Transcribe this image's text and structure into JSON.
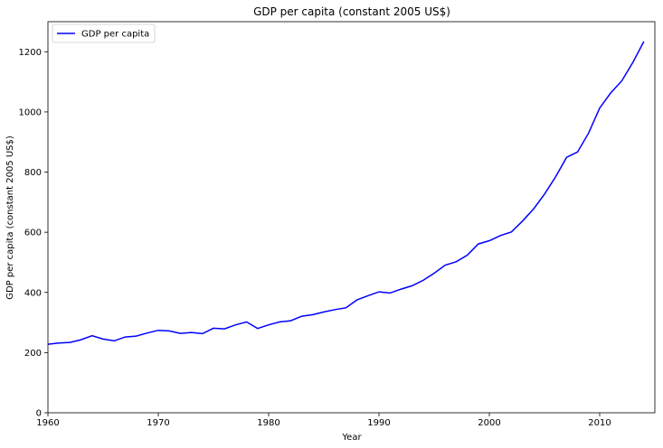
{
  "chart_data": {
    "type": "line",
    "title": "GDP per capita (constant 2005 US$)",
    "xlabel": "Year",
    "ylabel": "GDP per capita (constant 2005 US$)",
    "xlim": [
      1960,
      2015
    ],
    "ylim": [
      0,
      1300
    ],
    "xticks": [
      1960,
      1970,
      1980,
      1990,
      2000,
      2010
    ],
    "yticks": [
      0,
      200,
      400,
      600,
      800,
      1000,
      1200
    ],
    "grid": false,
    "legend_position": "top-left",
    "series": [
      {
        "name": "GDP per capita",
        "color": "#0000ff",
        "x": [
          1960,
          1961,
          1962,
          1963,
          1964,
          1965,
          1966,
          1967,
          1968,
          1969,
          1970,
          1971,
          1972,
          1973,
          1974,
          1975,
          1976,
          1977,
          1978,
          1979,
          1980,
          1981,
          1982,
          1983,
          1984,
          1985,
          1986,
          1987,
          1988,
          1989,
          1990,
          1991,
          1992,
          1993,
          1994,
          1995,
          1996,
          1997,
          1998,
          1999,
          2000,
          2001,
          2002,
          2003,
          2004,
          2005,
          2006,
          2007,
          2008,
          2009,
          2010,
          2011,
          2012,
          2013,
          2014
        ],
        "values": [
          228,
          232,
          234,
          243,
          256,
          245,
          239,
          252,
          255,
          265,
          274,
          272,
          264,
          267,
          263,
          281,
          279,
          292,
          302,
          280,
          292,
          302,
          306,
          321,
          326,
          335,
          343,
          349,
          375,
          389,
          402,
          398,
          411,
          422,
          440,
          464,
          491,
          502,
          524,
          561,
          572,
          589,
          601,
          637,
          677,
          727,
          784,
          849,
          867,
          930,
          1013,
          1063,
          1103,
          1164,
          1234
        ]
      }
    ]
  }
}
